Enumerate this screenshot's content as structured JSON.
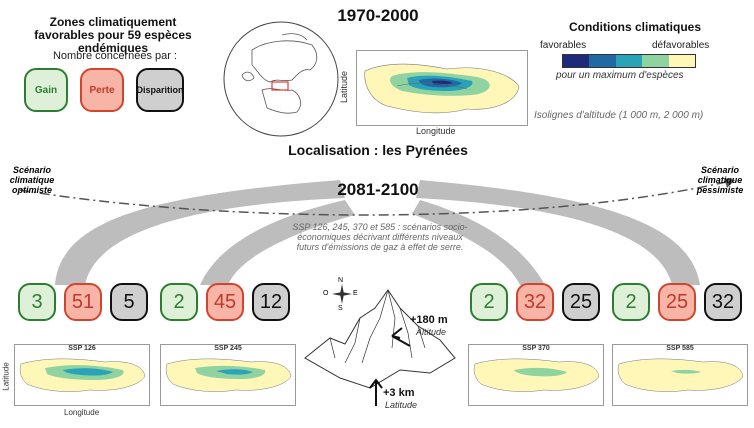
{
  "header": {
    "left_title": "Zones climatiquement favorables pour 59 espèces endémiques",
    "center_title": "1970-2000",
    "right_title": "Conditions climatiques"
  },
  "legend": {
    "subtitle": "Nombre concernées par :",
    "gain": "Gain",
    "perte": "Perte",
    "disparition": "Disparition",
    "scale_left": "favorables",
    "scale_right": "défavorables",
    "scale_note": "pour un maximum d'espèces",
    "scale_colors": [
      "#1f2a7a",
      "#1f6aa5",
      "#2aa2b8",
      "#8fd3a0",
      "#fff7b8"
    ],
    "isolines": "Isolignes d'altitude (1 000 m, 2 000 m)"
  },
  "map_main": {
    "ylabel": "Latitude",
    "xlabel": "Longitude"
  },
  "localisation": "Localisation : les Pyrénées",
  "period": "2081-2100",
  "scenarios": {
    "optimiste": "Scénario climatique optimiste",
    "pessimiste": "Scénario climatique pessimiste",
    "description": "SSP 126, 245, 370 et 585 : scénarios socio-économiques décrivant différents niveaux futurs d'émissions de gaz à effet de serre."
  },
  "ssp": [
    {
      "label": "SSP 126",
      "gain": "3",
      "perte": "51",
      "disparition": "5"
    },
    {
      "label": "SSP 245",
      "gain": "2",
      "perte": "45",
      "disparition": "12"
    },
    {
      "label": "SSP 370",
      "gain": "2",
      "perte": "32",
      "disparition": "25"
    },
    {
      "label": "SSP 585",
      "gain": "2",
      "perte": "25",
      "disparition": "32"
    }
  ],
  "small_map": {
    "ylabel": "Latitude",
    "xlabel": "Longitude"
  },
  "mountain": {
    "compass_n": "N",
    "compass_s": "S",
    "compass_e": "E",
    "compass_o": "O",
    "altitude_value": "+180 m",
    "altitude_label": "Altitude",
    "latitude_value": "+3 km",
    "latitude_label": "Latitude"
  }
}
